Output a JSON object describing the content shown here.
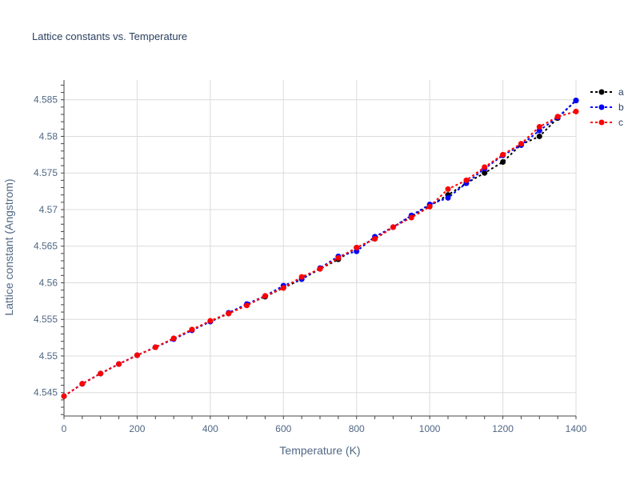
{
  "chart_data": {
    "type": "line",
    "title": "Lattice constants vs. Temperature",
    "xlabel": "Temperature (K)",
    "ylabel": "Lattice constant (Angstrom)",
    "xlim": [
      0,
      1400
    ],
    "ylim": [
      4.5418,
      4.5877
    ],
    "xticks": [
      0,
      200,
      400,
      600,
      800,
      1000,
      1200,
      1400
    ],
    "xtick_labels": [
      "0",
      "200",
      "400",
      "600",
      "800",
      "1000",
      "1200",
      "1400"
    ],
    "yticks": [
      4.545,
      4.55,
      4.555,
      4.56,
      4.565,
      4.57,
      4.575,
      4.58,
      4.585
    ],
    "ytick_labels": [
      "4.545",
      "4.55",
      "4.555",
      "4.56",
      "4.565",
      "4.57",
      "4.575",
      "4.58",
      "4.585"
    ],
    "grid": true,
    "legend_position": "top-right",
    "x": [
      0,
      50,
      100,
      150,
      200,
      250,
      300,
      350,
      400,
      450,
      500,
      550,
      600,
      650,
      700,
      750,
      800,
      850,
      900,
      950,
      1000,
      1050,
      1100,
      1150,
      1200,
      1250,
      1300,
      1350,
      1400
    ],
    "series": [
      {
        "name": "a",
        "color": "#000000",
        "values": [
          4.5445,
          4.5462,
          4.5476,
          4.5489,
          4.5501,
          4.5512,
          4.5524,
          4.5536,
          4.5547,
          4.5558,
          4.557,
          4.5581,
          4.5593,
          4.5605,
          4.5619,
          4.5632,
          4.5648,
          4.566,
          4.5676,
          4.5691,
          4.5705,
          4.572,
          4.5736,
          4.575,
          4.5765,
          4.5789,
          4.58,
          4.5825,
          4.5849
        ]
      },
      {
        "name": "b",
        "color": "#0000ff",
        "values": [
          4.5445,
          4.5462,
          4.5476,
          4.5489,
          4.5501,
          4.5512,
          4.5523,
          4.5535,
          4.5547,
          4.5559,
          4.5571,
          4.5582,
          4.5596,
          4.5605,
          4.562,
          4.5636,
          4.5643,
          4.5663,
          4.5676,
          4.5692,
          4.5707,
          4.5716,
          4.5736,
          4.5756,
          4.5774,
          4.5788,
          4.5808,
          4.5826,
          4.5849
        ]
      },
      {
        "name": "c",
        "color": "#ff0000",
        "values": [
          4.5445,
          4.5462,
          4.5476,
          4.5489,
          4.5501,
          4.5512,
          4.5524,
          4.5536,
          4.5548,
          4.5558,
          4.5569,
          4.5582,
          4.5593,
          4.5608,
          4.5619,
          4.5634,
          4.5648,
          4.566,
          4.5676,
          4.5689,
          4.5704,
          4.5728,
          4.574,
          4.5758,
          4.5775,
          4.579,
          4.5813,
          4.5827,
          4.5834
        ]
      }
    ]
  }
}
